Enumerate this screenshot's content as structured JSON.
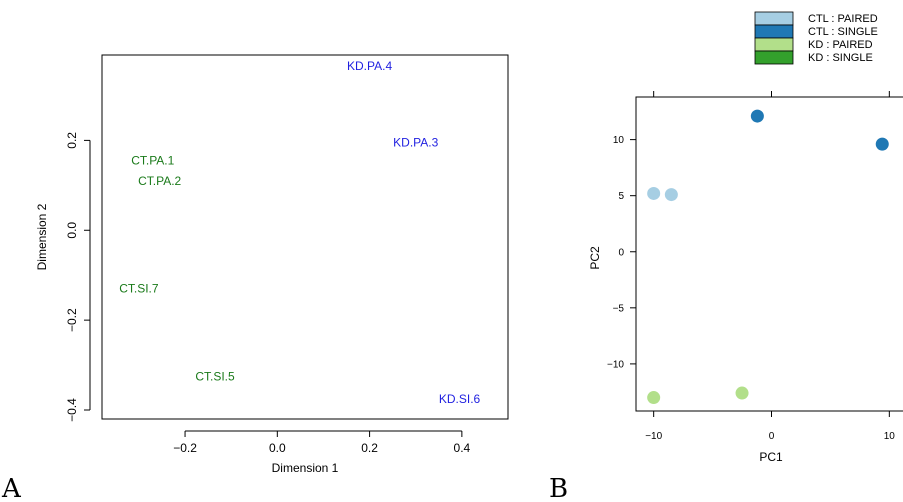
{
  "panels": {
    "a_letter": "A",
    "b_letter": "B"
  },
  "chart_data": [
    {
      "type": "scatter",
      "panel": "A",
      "title": "",
      "xlabel": "Dimension 1",
      "ylabel": "Dimension 2",
      "xlim": [
        -0.38,
        0.5
      ],
      "ylim": [
        -0.42,
        0.39
      ],
      "xticks": [
        -0.2,
        0.0,
        0.2,
        0.4
      ],
      "xtick_labels": [
        "−0.2",
        "0.0",
        "0.2",
        "0.4"
      ],
      "yticks": [
        -0.4,
        -0.2,
        0.0,
        0.2
      ],
      "ytick_labels": [
        "−0.4",
        "−0.2",
        "0.0",
        "0.2"
      ],
      "grid": false,
      "marker": "text-label",
      "colors": {
        "CT": "#1a7a1a",
        "KD": "#1f1fe0"
      },
      "points": [
        {
          "label": "KD.PA.4",
          "group": "KD",
          "x": 0.2,
          "y": 0.365
        },
        {
          "label": "KD.PA.3",
          "group": "KD",
          "x": 0.3,
          "y": 0.195
        },
        {
          "label": "CT.PA.1",
          "group": "CT",
          "x": -0.27,
          "y": 0.155
        },
        {
          "label": "CT.PA.2",
          "group": "CT",
          "x": -0.255,
          "y": 0.11
        },
        {
          "label": "CT.SI.7",
          "group": "CT",
          "x": -0.3,
          "y": -0.13
        },
        {
          "label": "CT.SI.5",
          "group": "CT",
          "x": -0.135,
          "y": -0.325
        },
        {
          "label": "KD.SI.6",
          "group": "KD",
          "x": 0.395,
          "y": -0.375
        }
      ]
    },
    {
      "type": "scatter",
      "panel": "B",
      "title": "",
      "xlabel": "PC1",
      "ylabel": "PC2",
      "xlim": [
        -11.5,
        11.5
      ],
      "ylim": [
        -14.2,
        13.8
      ],
      "xticks": [
        -10,
        0,
        10
      ],
      "xtick_labels": [
        "−10",
        "0",
        "10"
      ],
      "yticks": [
        -10,
        -5,
        0,
        5,
        10
      ],
      "ytick_labels": [
        "−10",
        "−5",
        "0",
        "5",
        "10"
      ],
      "grid": false,
      "legend_position": "top-right, outside plot",
      "series": [
        {
          "name": "CTL : PAIRED",
          "color": "#a6cee3",
          "points": [
            [
              -10.0,
              5.2
            ],
            [
              -8.5,
              5.1
            ]
          ]
        },
        {
          "name": "CTL : SINGLE",
          "color": "#1f78b4",
          "points": [
            [
              -1.2,
              12.1
            ],
            [
              9.4,
              9.6
            ]
          ]
        },
        {
          "name": "KD : PAIRED",
          "color": "#b2df8a",
          "points": [
            [
              -10.0,
              -13.0
            ],
            [
              -2.5,
              -12.6
            ]
          ]
        },
        {
          "name": "KD : SINGLE",
          "color": "#33a02c",
          "points": []
        }
      ]
    }
  ]
}
